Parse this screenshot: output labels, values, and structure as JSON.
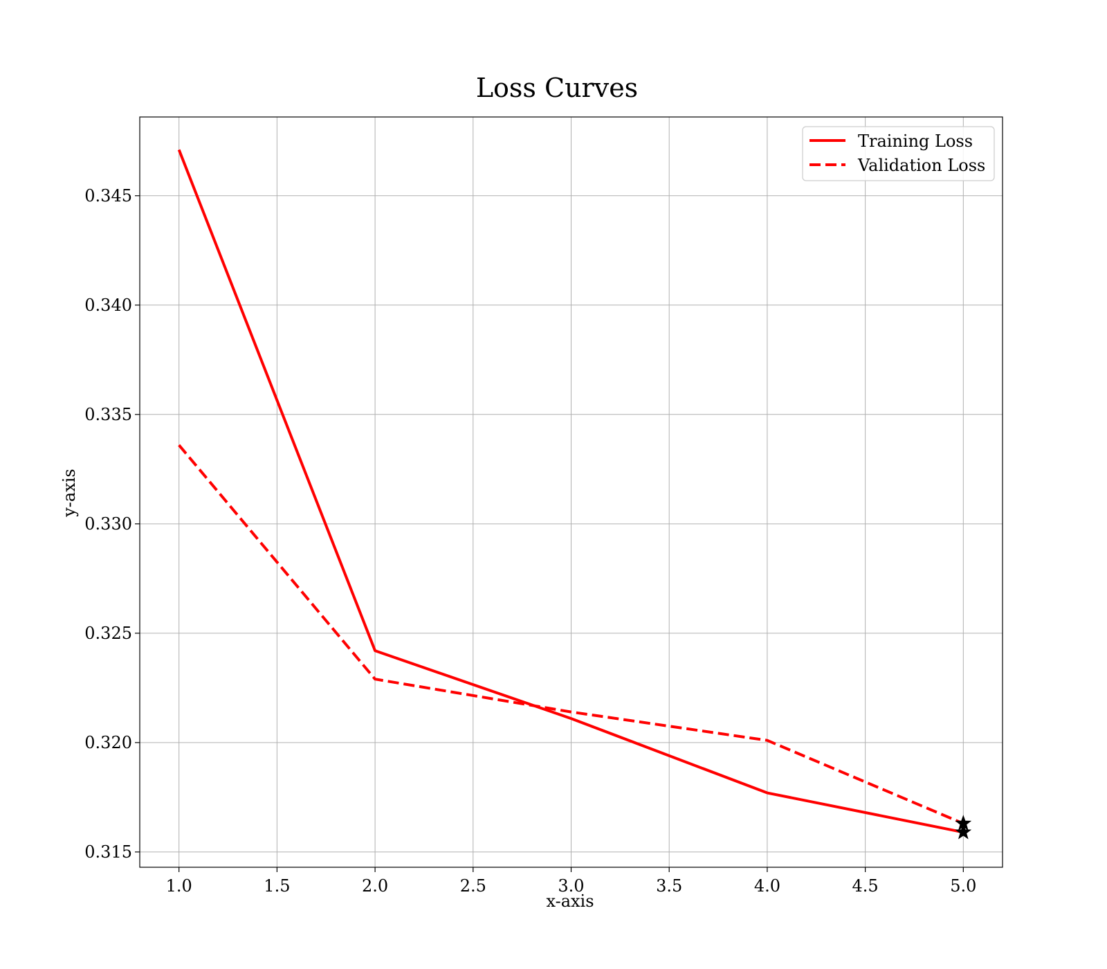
{
  "chart_data": {
    "type": "line",
    "title": "Loss Curves",
    "xlabel": "x-axis",
    "ylabel": "y-axis",
    "xlim": [
      0.8,
      5.2
    ],
    "ylim": [
      0.3143,
      0.3486
    ],
    "grid": true,
    "legend_position": "top-right",
    "x": [
      1,
      2,
      3,
      4,
      5
    ],
    "x_ticks": [
      "1.0",
      "1.5",
      "2.0",
      "2.5",
      "3.0",
      "3.5",
      "4.0",
      "4.5",
      "5.0"
    ],
    "y_ticks": [
      "0.315",
      "0.320",
      "0.325",
      "0.330",
      "0.335",
      "0.340",
      "0.345"
    ],
    "series": [
      {
        "name": "Training Loss",
        "values": [
          0.3471,
          0.3242,
          0.3211,
          0.3177,
          0.3159
        ],
        "color": "#ff0000",
        "line_style": "solid",
        "end_marker": "star"
      },
      {
        "name": "Validation Loss",
        "values": [
          0.3336,
          0.3229,
          0.3214,
          0.3201,
          0.3163
        ],
        "color": "#ff0000",
        "line_style": "dashed",
        "end_marker": "star"
      }
    ]
  }
}
